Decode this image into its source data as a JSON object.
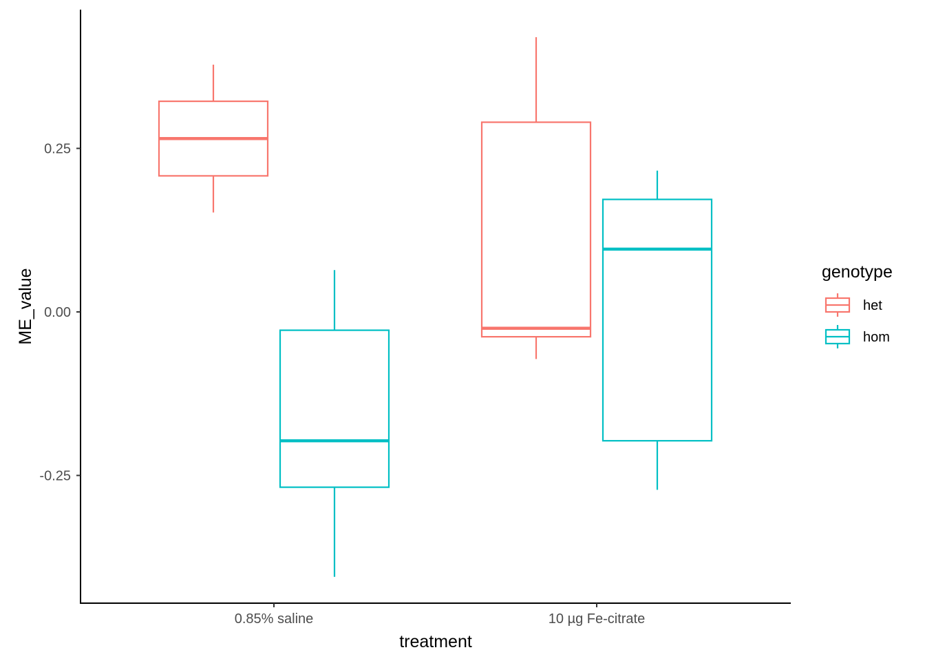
{
  "chart_data": {
    "type": "boxplot",
    "xlabel": "treatment",
    "ylabel": "ME_value",
    "categories": [
      "0.85% saline",
      "10 µg Fe-citrate"
    ],
    "y_ticks": [
      -0.25,
      0.0,
      0.25
    ],
    "y_tick_labels": [
      "-0.25",
      "0.00",
      "0.25"
    ],
    "ylim": [
      -0.445,
      0.46
    ],
    "grid": false,
    "legend": {
      "title": "genotype",
      "position": "right",
      "entries": [
        "het",
        "hom"
      ]
    },
    "series": [
      {
        "name": "het",
        "color": "#F8766D",
        "boxes": [
          {
            "category": "0.85% saline",
            "lower_whisker": 0.152,
            "q1": 0.208,
            "median": 0.265,
            "q3": 0.322,
            "upper_whisker": 0.378
          },
          {
            "category": "10 µg Fe-citrate",
            "lower_whisker": -0.072,
            "q1": -0.038,
            "median": -0.025,
            "q3": 0.29,
            "upper_whisker": 0.42
          }
        ]
      },
      {
        "name": "hom",
        "color": "#00BFC4",
        "boxes": [
          {
            "category": "0.85% saline",
            "lower_whisker": -0.405,
            "q1": -0.268,
            "median": -0.197,
            "q3": -0.028,
            "upper_whisker": 0.064
          },
          {
            "category": "10 µg Fe-citrate",
            "lower_whisker": -0.272,
            "q1": -0.197,
            "median": 0.096,
            "q3": 0.172,
            "upper_whisker": 0.216
          }
        ]
      }
    ]
  }
}
